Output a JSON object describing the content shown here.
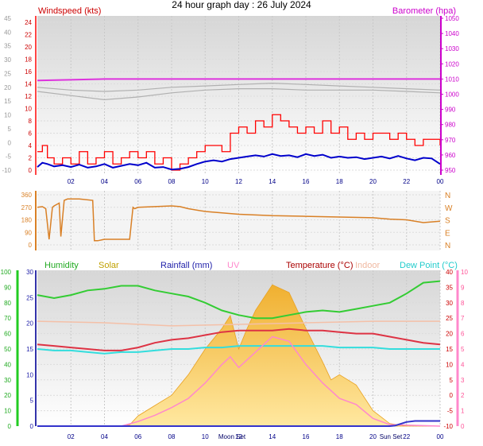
{
  "title": "24 hour graph day : 26 July 2024",
  "x_ticks": [
    "02",
    "04",
    "06",
    "08",
    "10",
    "12",
    "14",
    "16",
    "18",
    "20",
    "22",
    "00"
  ],
  "markers": {
    "moon_set": "Moon Set",
    "sun_set": "Sun Set"
  },
  "colors": {
    "wind_speed": "#ff0000",
    "wind_avg": "#0000cc",
    "barometer": "#dd33dd",
    "barometer_label": "#cc00cc",
    "wind_dir": "#d98026",
    "humidity": "#33cc33",
    "solar": "#f5c04a",
    "rainfall": "#3333cc",
    "uv": "#ff88cc",
    "temperature": "#dd3344",
    "indoor": "#f4c0a8",
    "dew_point": "#33dddd",
    "grey_trace": "#b0b0b0"
  },
  "chart_data": [
    {
      "type": "line",
      "title": "",
      "left_axis_label": "Windspeed (kts)",
      "right_axis_label": "Barometer (hpa)",
      "left_ticks_red": [
        "24",
        "22",
        "20",
        "18",
        "16",
        "14",
        "12",
        "10",
        "8",
        "6",
        "4",
        "2",
        "0"
      ],
      "left_ticks_grey": [
        "45",
        "40",
        "35",
        "30",
        "25",
        "20",
        "15",
        "10",
        "5",
        "0",
        "-5",
        "-10"
      ],
      "right_ticks": [
        "1050",
        "1040",
        "1030",
        "1020",
        "1010",
        "1000",
        "990",
        "980",
        "970",
        "960",
        "950"
      ],
      "x_range_hours": [
        0,
        24
      ],
      "series": [
        {
          "key": "wind_gust",
          "axis": "kts",
          "x": [
            0,
            0.3,
            0.6,
            1.0,
            1.5,
            2.0,
            2.5,
            3.0,
            3.5,
            4.0,
            4.5,
            5.0,
            5.5,
            6.0,
            6.5,
            7.0,
            7.5,
            8.0,
            8.5,
            9.0,
            9.5,
            10.0,
            10.5,
            11.0,
            11.5,
            12.0,
            12.5,
            13.0,
            13.5,
            14.0,
            14.5,
            15.0,
            15.5,
            16.0,
            16.5,
            17.0,
            17.5,
            18.0,
            18.5,
            19.0,
            19.5,
            20.0,
            20.5,
            21.0,
            21.5,
            22.0,
            22.5,
            23.0,
            23.5,
            24.0
          ],
          "values": [
            3,
            4,
            2,
            1,
            2,
            1,
            3,
            1,
            2,
            3,
            1,
            2,
            3,
            2,
            3,
            1,
            2,
            0,
            1,
            2,
            3,
            4,
            4,
            3,
            6,
            7,
            6,
            8,
            7,
            9,
            8,
            7,
            6,
            7,
            6,
            8,
            6,
            7,
            5,
            6,
            5,
            6,
            6,
            5,
            6,
            5,
            4,
            5,
            5,
            4
          ]
        },
        {
          "key": "wind_avg",
          "axis": "kts",
          "x": [
            0,
            0.3,
            0.6,
            1.0,
            1.5,
            2.0,
            2.5,
            3.0,
            3.5,
            4.0,
            4.5,
            5.0,
            5.5,
            6.0,
            6.5,
            7.0,
            7.5,
            8.0,
            8.5,
            9.0,
            9.5,
            10.0,
            10.5,
            11.0,
            11.5,
            12.0,
            12.5,
            13.0,
            13.5,
            14.0,
            14.5,
            15.0,
            15.5,
            16.0,
            16.5,
            17.0,
            17.5,
            18.0,
            18.5,
            19.0,
            19.5,
            20.0,
            20.5,
            21.0,
            21.5,
            22.0,
            22.5,
            23.0,
            23.5,
            24.0
          ],
          "values": [
            0.5,
            1.2,
            1.0,
            0.6,
            0.8,
            0.5,
            0.9,
            0.4,
            0.6,
            1.0,
            0.4,
            0.7,
            1.0,
            0.8,
            1.2,
            0.4,
            0.5,
            0.1,
            0.2,
            0.5,
            1.0,
            1.4,
            1.6,
            1.4,
            1.8,
            2.0,
            2.2,
            2.4,
            2.2,
            2.6,
            2.3,
            2.4,
            2.1,
            2.6,
            2.3,
            2.5,
            2.0,
            2.2,
            2.0,
            2.1,
            1.8,
            2.0,
            2.2,
            1.9,
            2.3,
            1.9,
            1.6,
            2.0,
            1.9,
            1.0
          ]
        },
        {
          "key": "barometer",
          "axis": "hpa",
          "x": [
            0,
            4,
            8,
            12,
            16,
            20,
            24
          ],
          "values": [
            1009,
            1010,
            1010,
            1010,
            1010,
            1010,
            1010
          ]
        },
        {
          "key": "grey_upper",
          "axis": "grey",
          "x": [
            0,
            2,
            4,
            6,
            8,
            10,
            12,
            14,
            16,
            18,
            20,
            22,
            24
          ],
          "values": [
            20,
            19,
            18.5,
            19,
            20,
            20.5,
            21,
            21.5,
            21,
            20.5,
            20,
            19.5,
            19
          ]
        },
        {
          "key": "grey_lower",
          "axis": "grey",
          "x": [
            0,
            2,
            4,
            6,
            8,
            10,
            12,
            14,
            16,
            18,
            20,
            22,
            24
          ],
          "values": [
            18.5,
            17,
            15.5,
            16.5,
            18,
            19,
            19.5,
            19.5,
            19,
            19,
            19,
            18.5,
            18
          ]
        }
      ]
    },
    {
      "type": "line",
      "title": "",
      "left_ticks": [
        "360",
        "270",
        "180",
        "90",
        "0"
      ],
      "right_labels": [
        "N",
        "W",
        "S",
        "E",
        "N"
      ],
      "series": [
        {
          "key": "wind_direction",
          "x": [
            0,
            0.3,
            0.5,
            0.7,
            0.9,
            1.0,
            1.3,
            1.4,
            1.6,
            1.8,
            2.5,
            3.3,
            3.4,
            3.6,
            4.0,
            5.0,
            5.5,
            5.7,
            5.8,
            6.0,
            7.0,
            8.0,
            8.5,
            9.0,
            10.0,
            12.0,
            14.0,
            16.0,
            18.0,
            20.0,
            21.0,
            22.0,
            23.0,
            24.0
          ],
          "values": [
            270,
            275,
            260,
            40,
            270,
            280,
            300,
            60,
            320,
            330,
            330,
            320,
            30,
            30,
            40,
            40,
            40,
            270,
            260,
            270,
            275,
            280,
            275,
            260,
            240,
            220,
            210,
            205,
            200,
            195,
            185,
            180,
            160,
            170
          ]
        }
      ]
    },
    {
      "type": "line",
      "title": "",
      "legend": [
        "Humidity",
        "Solar",
        "Rainfall (mm)",
        "UV",
        "Temperature (°C)",
        "Indoor",
        "Dew Point (°C)"
      ],
      "left_ticks_humidity": [
        "100",
        "90",
        "80",
        "70",
        "60",
        "50",
        "40",
        "30",
        "20",
        "10",
        "0"
      ],
      "left_ticks_rain": [
        "30",
        "25",
        "20",
        "15",
        "10",
        "5",
        "0"
      ],
      "right_ticks_temp": [
        "40",
        "35",
        "30",
        "25",
        "20",
        "15",
        "10",
        "5",
        "0",
        "-5",
        "-10"
      ],
      "right_ticks_uv": [
        "10",
        "9",
        "8",
        "7",
        "6",
        "5",
        "4",
        "3",
        "2",
        "1",
        "0"
      ],
      "series": [
        {
          "key": "humidity",
          "axis": "hum",
          "x": [
            0,
            1,
            2,
            3,
            4,
            5,
            6,
            7,
            8,
            9,
            10,
            11,
            12,
            13,
            14,
            15,
            16,
            17,
            18,
            19,
            20,
            21,
            22,
            23,
            24
          ],
          "values": [
            85,
            83,
            85,
            88,
            89,
            91,
            91,
            88,
            86,
            84,
            80,
            75,
            72,
            70,
            70,
            72,
            74,
            75,
            74,
            76,
            78,
            80,
            86,
            93,
            94
          ]
        },
        {
          "key": "solar",
          "axis": "solar",
          "x": [
            0,
            4,
            5,
            5.5,
            6,
            7,
            8,
            9,
            10,
            11,
            11.5,
            12,
            12.5,
            13,
            14,
            15,
            16,
            17,
            17.5,
            18,
            19,
            20,
            21,
            22,
            24
          ],
          "values": [
            0,
            0,
            0,
            5,
            40,
            80,
            120,
            200,
            300,
            380,
            430,
            300,
            380,
            450,
            550,
            520,
            380,
            250,
            180,
            200,
            160,
            60,
            10,
            0,
            0
          ]
        },
        {
          "key": "rainfall",
          "axis": "rain",
          "x": [
            0,
            21,
            21.3,
            22,
            22.5,
            24
          ],
          "values": [
            0,
            0,
            0.1,
            0.8,
            1.0,
            1.0
          ]
        },
        {
          "key": "uv",
          "axis": "uv",
          "x": [
            0,
            5,
            6,
            7,
            8,
            9,
            10,
            11,
            11.5,
            12,
            13,
            14,
            15,
            16,
            17,
            18,
            19,
            20,
            21,
            24
          ],
          "values": [
            0,
            0,
            0.3,
            0.7,
            1.2,
            1.8,
            2.8,
            4.0,
            4.5,
            3.8,
            4.8,
            5.8,
            5.5,
            4.0,
            2.8,
            1.8,
            1.4,
            0.5,
            0.1,
            0
          ]
        },
        {
          "key": "temperature",
          "axis": "temp",
          "x": [
            0,
            1,
            2,
            3,
            4,
            5,
            6,
            7,
            8,
            9,
            10,
            11,
            12,
            13,
            14,
            15,
            16,
            17,
            18,
            19,
            20,
            21,
            22,
            23,
            24
          ],
          "values": [
            16.5,
            16,
            15.5,
            15,
            14.5,
            14.5,
            15.5,
            17,
            18,
            18.5,
            19.5,
            20.5,
            21,
            21,
            21,
            21.5,
            21,
            21,
            20.5,
            20,
            20,
            19,
            18,
            17,
            16.5
          ]
        },
        {
          "key": "indoor",
          "axis": "temp",
          "x": [
            0,
            4,
            8,
            12,
            16,
            20,
            24
          ],
          "values": [
            24,
            23.5,
            22.5,
            23,
            23.5,
            24,
            24
          ]
        },
        {
          "key": "dew_point",
          "axis": "temp",
          "x": [
            0,
            1,
            2,
            3,
            4,
            5,
            6,
            7,
            8,
            9,
            10,
            11,
            12,
            13,
            14,
            15,
            16,
            17,
            18,
            19,
            20,
            21,
            22,
            23,
            24
          ],
          "values": [
            15,
            14.5,
            14.5,
            14,
            13.5,
            14,
            14,
            14.5,
            15,
            15,
            15.5,
            15.5,
            16,
            16,
            16,
            16,
            16,
            16,
            15.5,
            15.5,
            15.5,
            15,
            15,
            15,
            15
          ]
        }
      ]
    }
  ]
}
